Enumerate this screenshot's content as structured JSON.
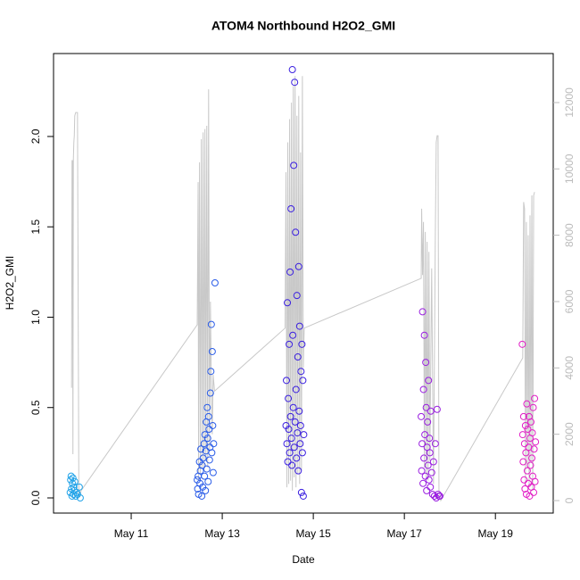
{
  "chart_data": {
    "type": "scatter",
    "title": "ATOM4 Northbound H2O2_GMI",
    "xlabel": "Date",
    "ylabel": "H2O2_GMI",
    "xlim": [
      9.294,
      20.27
    ],
    "xticks": [
      {
        "value": 11,
        "label": "May 11"
      },
      {
        "value": 13,
        "label": "May 13"
      },
      {
        "value": 15,
        "label": "May 15"
      },
      {
        "value": 17,
        "label": "May 17"
      },
      {
        "value": 19,
        "label": "May 19"
      }
    ],
    "ylim": [
      -0.084,
      2.459
    ],
    "yticks": [
      {
        "value": 0,
        "label": "0.0"
      },
      0.5,
      {
        "value": 1,
        "label": "1.0"
      },
      1.5,
      {
        "value": 2,
        "label": "2.0"
      }
    ],
    "y2lim": [
      -377,
      13478
    ],
    "y2ticks": [
      0,
      2000,
      4000,
      6000,
      8000,
      10000,
      12000
    ],
    "series": [
      {
        "type": "line",
        "axis": "y2",
        "color": "#c8c8c8",
        "x": [
          9.69,
          9.7,
          9.71,
          9.72,
          9.73,
          9.74,
          9.75,
          9.76,
          9.78,
          9.8,
          9.82,
          9.85,
          9.87,
          9.9,
          12.45,
          12.47,
          12.48,
          12.5,
          12.52,
          12.54,
          12.56,
          12.58,
          12.6,
          12.62,
          12.64,
          12.66,
          12.68,
          12.7,
          12.72,
          12.74,
          12.76,
          12.78,
          12.8,
          12.83,
          14.38,
          14.4,
          14.42,
          14.44,
          14.46,
          14.48,
          14.5,
          14.52,
          14.54,
          14.56,
          14.58,
          14.6,
          14.62,
          14.64,
          14.66,
          14.68,
          14.7,
          14.72,
          14.74,
          14.76,
          14.78,
          14.8,
          17.37,
          17.38,
          17.4,
          17.42,
          17.44,
          17.46,
          17.48,
          17.5,
          17.52,
          17.54,
          17.56,
          17.6,
          17.64,
          17.68,
          17.7,
          17.72,
          17.74,
          17.76,
          17.8,
          19.6,
          19.62,
          19.64,
          19.66,
          19.68,
          19.7,
          19.72,
          19.74,
          19.76,
          19.78,
          19.8,
          19.82,
          19.84,
          19.86
        ],
        "values": [
          3400,
          10250,
          10250,
          1400,
          10300,
          10800,
          11000,
          11600,
          11700,
          11700,
          11700,
          200,
          100,
          300,
          5300,
          9600,
          600,
          10200,
          800,
          10900,
          1000,
          11100,
          900,
          11200,
          1200,
          11300,
          1000,
          12400,
          1500,
          6000,
          3500,
          2000,
          3800,
          3300,
          5200,
          9900,
          400,
          10800,
          500,
          11500,
          600,
          12000,
          300,
          12500,
          700,
          12800,
          400,
          11600,
          800,
          12200,
          500,
          10500,
          900,
          12800,
          4000,
          5200,
          6700,
          8800,
          6800,
          8400,
          1000,
          8100,
          700,
          7800,
          600,
          7500,
          1200,
          7000,
          500,
          8000,
          10800,
          11000,
          11000,
          300,
          0,
          4300,
          9000,
          8800,
          500,
          8400,
          1000,
          8000,
          400,
          8600,
          1200,
          9200,
          300,
          9200,
          9300
        ]
      },
      {
        "color": "#22a3e8",
        "x": [
          9.66,
          9.67,
          9.68,
          9.69,
          9.7,
          9.71,
          9.72,
          9.73,
          9.74,
          9.75,
          9.76,
          9.78,
          9.8,
          9.82,
          9.86,
          9.88
        ],
        "values": [
          0.03,
          0.1,
          0.12,
          0.05,
          0.01,
          0.08,
          0.11,
          0.02,
          0.06,
          0.04,
          0.09,
          0.01,
          0.03,
          0.02,
          0.06,
          0.0
        ]
      },
      {
        "color": "#2a5ce8",
        "x": [
          12.45,
          12.46,
          12.47,
          12.48,
          12.5,
          12.51,
          12.52,
          12.53,
          12.55,
          12.56,
          12.57,
          12.58,
          12.6,
          12.61,
          12.62,
          12.63,
          12.64,
          12.65,
          12.66,
          12.67,
          12.68,
          12.69,
          12.7,
          12.71,
          12.72,
          12.73,
          12.74,
          12.75,
          12.76,
          12.77,
          12.78,
          12.79,
          12.8,
          12.81,
          12.84
        ],
        "values": [
          0.1,
          0.05,
          0.12,
          0.02,
          0.2,
          0.08,
          0.15,
          0.27,
          0.01,
          0.18,
          0.06,
          0.22,
          0.3,
          0.12,
          0.35,
          0.04,
          0.26,
          0.42,
          0.16,
          0.5,
          0.33,
          0.09,
          0.45,
          0.38,
          0.21,
          0.28,
          0.58,
          0.7,
          0.96,
          0.25,
          0.81,
          0.4,
          0.14,
          0.3,
          1.19
        ]
      },
      {
        "color": "#3b20e0",
        "x": [
          14.4,
          14.41,
          14.42,
          14.43,
          14.44,
          14.45,
          14.46,
          14.47,
          14.48,
          14.49,
          14.5,
          14.51,
          14.52,
          14.53,
          14.54,
          14.55,
          14.56,
          14.57,
          14.58,
          14.59,
          14.6,
          14.61,
          14.62,
          14.63,
          14.64,
          14.65,
          14.66,
          14.67,
          14.68,
          14.69,
          14.7,
          14.71,
          14.72,
          14.73,
          14.74,
          14.75,
          14.76,
          14.77,
          14.78,
          14.79
        ],
        "values": [
          0.4,
          0.65,
          0.3,
          1.08,
          0.2,
          0.55,
          0.38,
          0.85,
          0.25,
          1.25,
          0.45,
          1.6,
          0.33,
          0.18,
          2.37,
          0.9,
          0.5,
          1.84,
          0.28,
          2.3,
          0.42,
          1.47,
          0.6,
          0.22,
          1.12,
          0.36,
          0.78,
          0.15,
          1.28,
          0.48,
          0.95,
          0.3,
          0.4,
          0.7,
          0.03,
          0.85,
          0.25,
          0.65,
          0.01,
          0.35
        ]
      },
      {
        "color": "#9a1fe0",
        "x": [
          17.37,
          17.38,
          17.39,
          17.4,
          17.41,
          17.42,
          17.43,
          17.44,
          17.45,
          17.46,
          17.47,
          17.48,
          17.49,
          17.5,
          17.51,
          17.52,
          17.53,
          17.54,
          17.55,
          17.56,
          17.57,
          17.58,
          17.6,
          17.62,
          17.64,
          17.66,
          17.68,
          17.7,
          17.72,
          17.74,
          17.76,
          17.78
        ],
        "values": [
          0.45,
          0.15,
          0.3,
          1.03,
          0.08,
          0.6,
          0.22,
          0.9,
          0.35,
          0.12,
          0.75,
          0.5,
          0.04,
          0.28,
          0.42,
          0.18,
          0.65,
          0.1,
          0.33,
          0.25,
          0.06,
          0.48,
          0.14,
          0.02,
          0.2,
          0.01,
          0.3,
          0.0,
          0.49,
          0.02,
          0.01,
          0.01
        ]
      },
      {
        "color": "#e21fc6",
        "x": [
          19.59,
          19.6,
          19.61,
          19.62,
          19.63,
          19.64,
          19.65,
          19.66,
          19.67,
          19.68,
          19.69,
          19.7,
          19.71,
          19.72,
          19.73,
          19.74,
          19.75,
          19.76,
          19.77,
          19.78,
          19.79,
          19.8,
          19.81,
          19.82,
          19.83,
          19.84,
          19.85,
          19.86,
          19.87,
          19.88
        ],
        "values": [
          0.85,
          0.35,
          0.2,
          0.45,
          0.1,
          0.3,
          0.05,
          0.4,
          0.25,
          0.02,
          0.52,
          0.15,
          0.38,
          0.08,
          0.28,
          0.45,
          0.01,
          0.33,
          0.18,
          0.42,
          0.06,
          0.22,
          0.36,
          0.12,
          0.5,
          0.03,
          0.27,
          0.55,
          0.09,
          0.31
        ]
      }
    ]
  }
}
